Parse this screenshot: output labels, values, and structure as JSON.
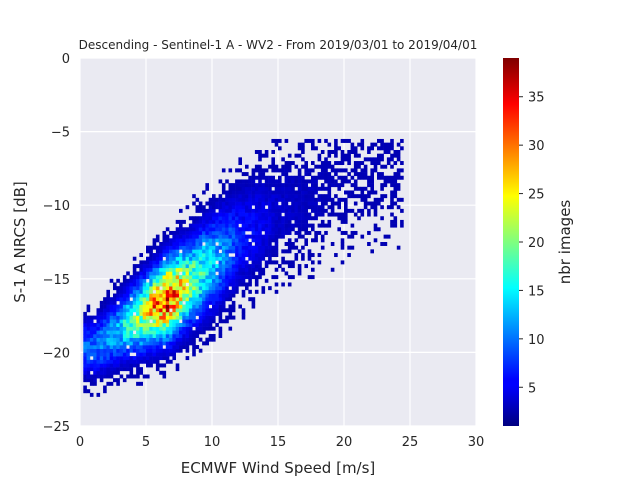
{
  "chart_data": {
    "type": "heatmap",
    "title": "Descending - Sentinel-1 A - WV2 - From 2019/03/01 to 2019/04/01",
    "xlabel": "ECMWF Wind Speed [m/s]",
    "ylabel": "S-1 A NRCS [dB]",
    "xlim": [
      0,
      30
    ],
    "ylim": [
      -25,
      0
    ],
    "xticks": [
      0,
      5,
      10,
      15,
      20,
      25,
      30
    ],
    "yticks": [
      0,
      -5,
      -10,
      -15,
      -20,
      -25
    ],
    "xtick_labels": [
      "0",
      "5",
      "10",
      "15",
      "20",
      "25",
      "30"
    ],
    "ytick_labels": [
      "0",
      "−5",
      "−10",
      "−15",
      "−20",
      "−25"
    ],
    "grid": true,
    "colormap": "jet",
    "colorbar": {
      "label": "nbr images",
      "min": 1,
      "max": 39,
      "ticks": [
        5,
        10,
        15,
        20,
        25,
        30,
        35
      ],
      "tick_labels": [
        "5",
        "10",
        "15",
        "20",
        "25",
        "30",
        "35"
      ]
    },
    "density_ridge": [
      {
        "x": 1,
        "y": -19.8,
        "count": 8
      },
      {
        "x": 3,
        "y": -18.5,
        "count": 12
      },
      {
        "x": 5,
        "y": -17.3,
        "count": 24
      },
      {
        "x": 6.5,
        "y": -16.5,
        "count": 34
      },
      {
        "x": 8,
        "y": -15.5,
        "count": 20
      },
      {
        "x": 10,
        "y": -14.0,
        "count": 12
      },
      {
        "x": 12,
        "y": -12.3,
        "count": 5
      },
      {
        "x": 15,
        "y": -10.5,
        "count": 2
      },
      {
        "x": 20,
        "y": -8.5,
        "count": 1
      },
      {
        "x": 23,
        "y": -7.2,
        "count": 1
      }
    ]
  },
  "colors": {
    "axes_background": "#eaeaf2",
    "grid": "#ffffff"
  }
}
